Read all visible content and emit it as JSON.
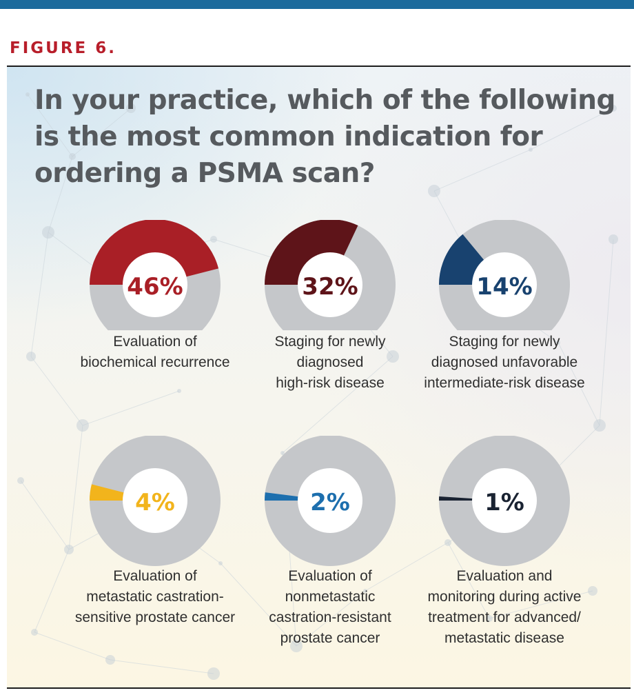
{
  "figure_label": "FIGURE 6.",
  "question": "In your practice, which of the following is the most common indication for ordering a PSMA scan?",
  "colors": {
    "top_bar": "#1b6a9c",
    "figure_label": "#b81e2a",
    "question_text": "#565a5e",
    "ring_track": "#c5c7ca",
    "ring_hole": "#ffffff"
  },
  "chart_data": [
    {
      "type": "pie",
      "style": "donut",
      "value": 46,
      "label": "46%",
      "color": "#a91f26",
      "caption_lines": [
        "Evaluation of",
        "biochemical recurrence"
      ]
    },
    {
      "type": "pie",
      "style": "donut",
      "value": 32,
      "label": "32%",
      "color": "#5e1419",
      "caption_lines": [
        "Staging for newly",
        "diagnosed",
        "high-risk disease"
      ]
    },
    {
      "type": "pie",
      "style": "donut",
      "value": 14,
      "label": "14%",
      "color": "#18426f",
      "caption_lines": [
        "Staging for newly",
        "diagnosed unfavorable",
        "intermediate-risk disease"
      ]
    },
    {
      "type": "pie",
      "style": "donut",
      "value": 4,
      "label": "4%",
      "color": "#f2b41c",
      "caption_lines": [
        "Evaluation of",
        "metastatic castration-",
        "sensitive prostate cancer"
      ]
    },
    {
      "type": "pie",
      "style": "donut",
      "value": 2,
      "label": "2%",
      "color": "#1d6fae",
      "caption_lines": [
        "Evaluation of",
        "nonmetastatic",
        "castration-resistant",
        "prostate cancer"
      ]
    },
    {
      "type": "pie",
      "style": "donut",
      "value": 1,
      "label": "1%",
      "color": "#1a2332",
      "caption_lines": [
        "Evaluation and",
        "monitoring during active",
        "treatment for advanced/",
        "metastatic disease"
      ]
    }
  ]
}
